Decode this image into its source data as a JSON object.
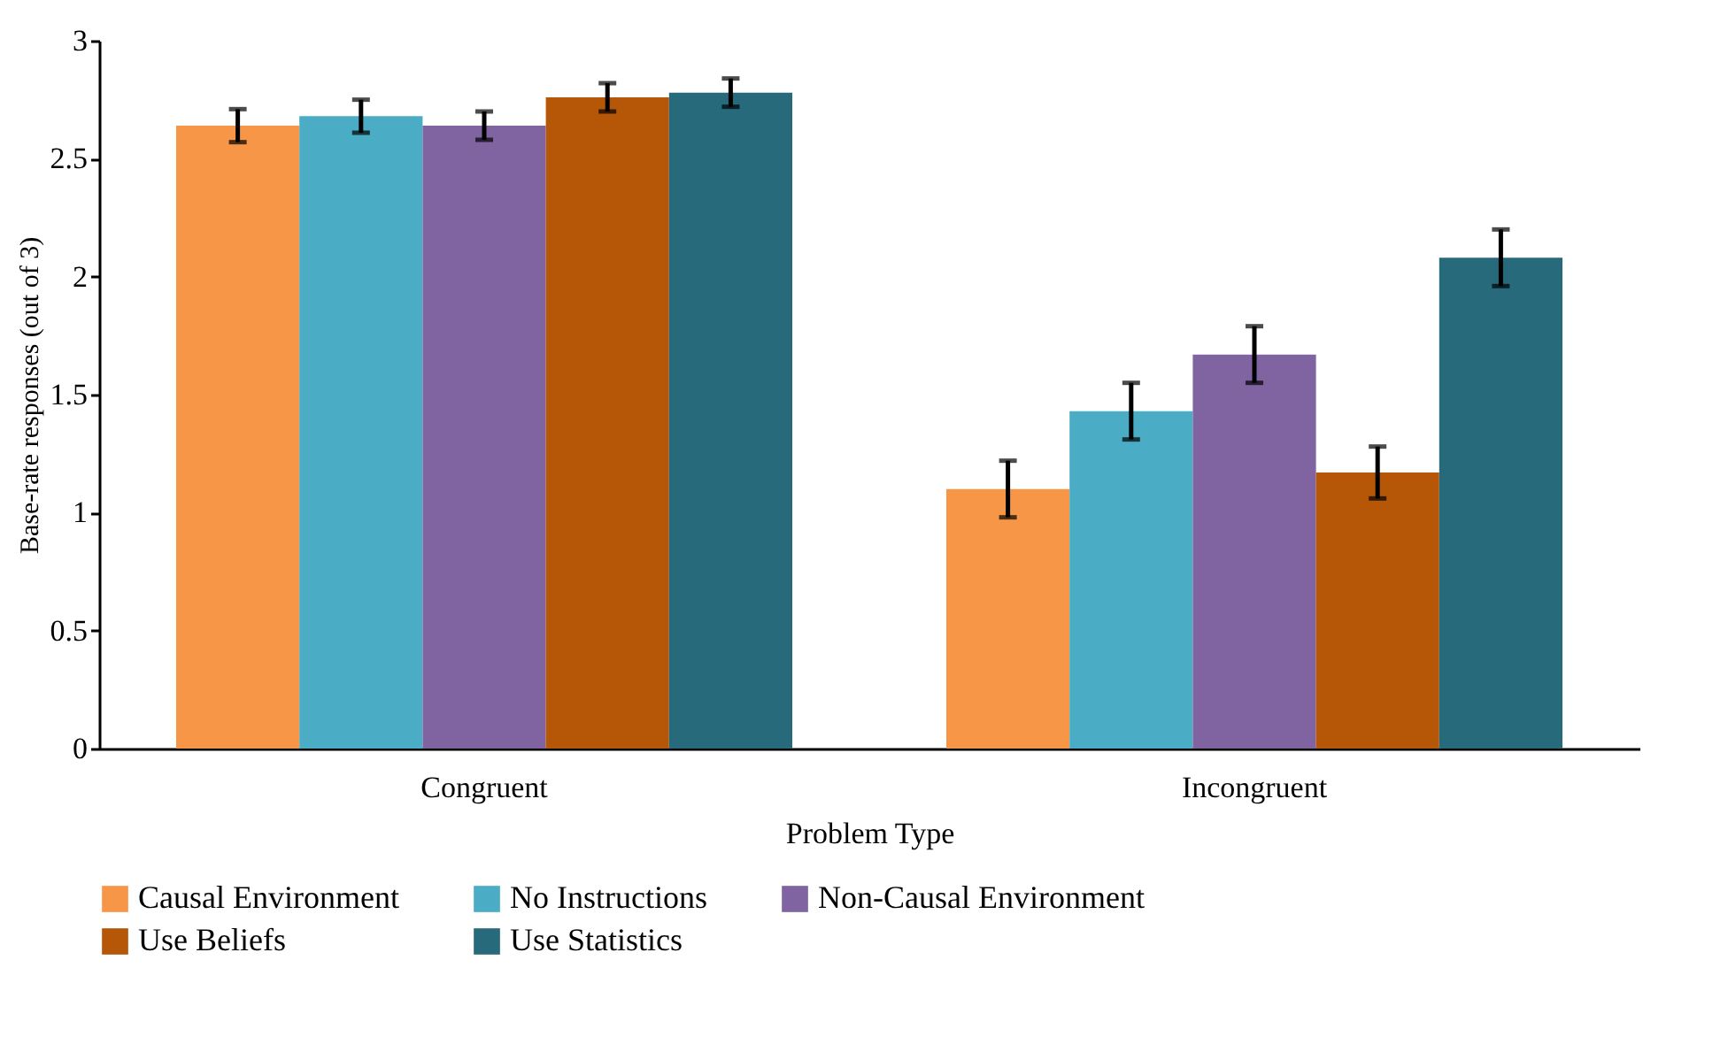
{
  "chart_data": {
    "type": "bar",
    "xlabel": "Problem Type",
    "ylabel": "Base-rate responses (out of 3)",
    "categories": [
      "Congruent",
      "Incongruent"
    ],
    "series": [
      {
        "name": "Causal Environment",
        "color": "#f79646",
        "values": [
          2.64,
          1.1
        ],
        "errors": [
          0.07,
          0.12
        ]
      },
      {
        "name": "No Instructions",
        "color": "#4bacc6",
        "values": [
          2.68,
          1.43
        ],
        "errors": [
          0.07,
          0.12
        ]
      },
      {
        "name": "Non-Causal Environment",
        "color": "#8064a2",
        "values": [
          2.64,
          1.67
        ],
        "errors": [
          0.06,
          0.12
        ]
      },
      {
        "name": "Use Beliefs",
        "color": "#b65708",
        "values": [
          2.76,
          1.17
        ],
        "errors": [
          0.06,
          0.11
        ]
      },
      {
        "name": "Use Statistics",
        "color": "#276a7c",
        "values": [
          2.78,
          2.08
        ],
        "errors": [
          0.06,
          0.12
        ]
      }
    ],
    "ylim": [
      0,
      3
    ],
    "yticks": [
      0,
      0.5,
      1,
      1.5,
      2,
      2.5,
      3
    ],
    "legend": "bottom"
  }
}
